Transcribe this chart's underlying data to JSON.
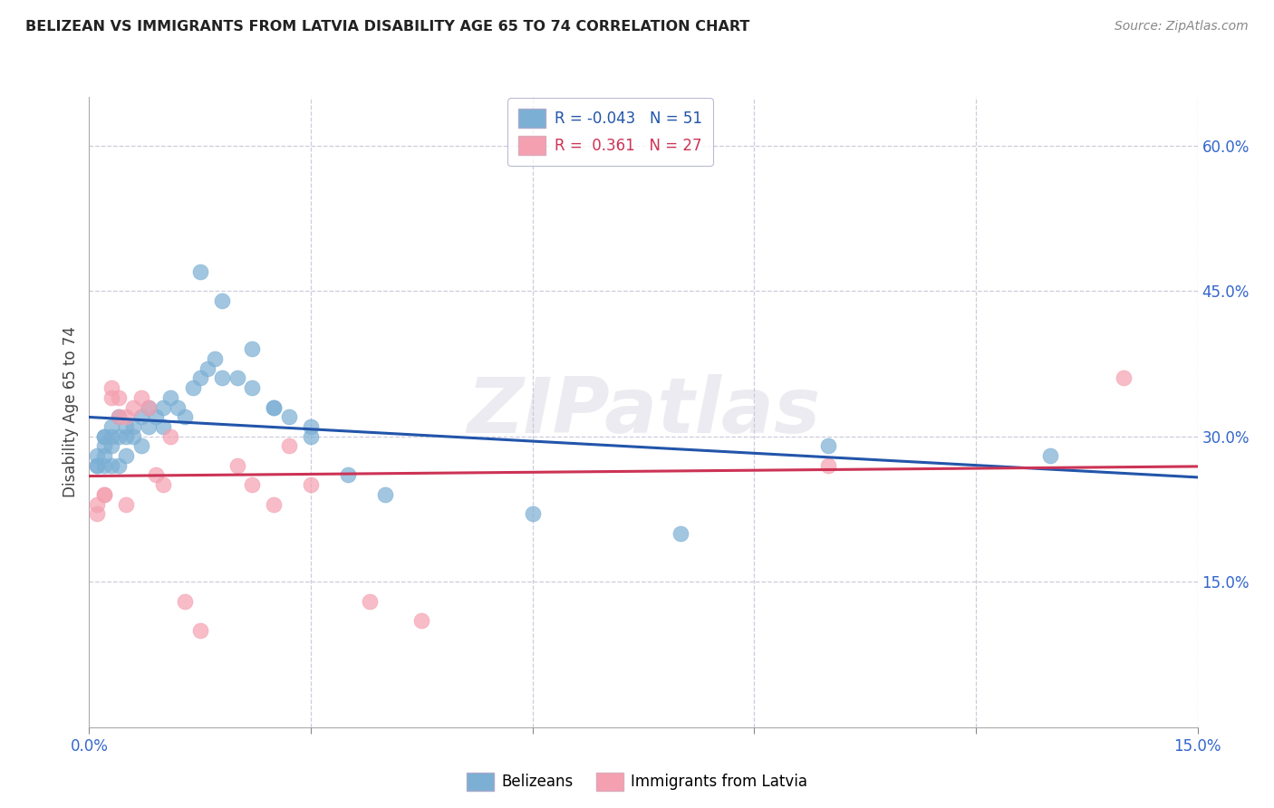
{
  "title": "BELIZEAN VS IMMIGRANTS FROM LATVIA DISABILITY AGE 65 TO 74 CORRELATION CHART",
  "source": "Source: ZipAtlas.com",
  "ylabel": "Disability Age 65 to 74",
  "xlim": [
    0.0,
    0.15
  ],
  "ylim": [
    0.0,
    0.65
  ],
  "xticks": [
    0.0,
    0.03,
    0.06,
    0.09,
    0.12,
    0.15
  ],
  "xticklabels": [
    "0.0%",
    "",
    "",
    "",
    "",
    "15.0%"
  ],
  "yticks_right": [
    0.15,
    0.3,
    0.45,
    0.6
  ],
  "ytick_labels_right": [
    "15.0%",
    "30.0%",
    "45.0%",
    "60.0%"
  ],
  "belizean_color": "#7BAFD4",
  "latvia_color": "#F4A0B0",
  "belizean_line_color": "#2255AA",
  "latvia_line_color": "#CC3355",
  "belizean_r": -0.043,
  "belizean_n": 51,
  "latvia_r": 0.361,
  "latvia_n": 27,
  "legend_label_1": "Belizeans",
  "legend_label_2": "Immigrants from Latvia",
  "watermark": "ZIPatlas",
  "belizean_x": [
    0.001,
    0.001,
    0.001,
    0.002,
    0.002,
    0.002,
    0.002,
    0.002,
    0.003,
    0.003,
    0.003,
    0.003,
    0.004,
    0.004,
    0.004,
    0.005,
    0.005,
    0.005,
    0.006,
    0.006,
    0.007,
    0.007,
    0.008,
    0.008,
    0.009,
    0.01,
    0.01,
    0.011,
    0.012,
    0.013,
    0.014,
    0.015,
    0.016,
    0.017,
    0.018,
    0.02,
    0.022,
    0.025,
    0.027,
    0.03,
    0.015,
    0.018,
    0.022,
    0.025,
    0.03,
    0.035,
    0.04,
    0.06,
    0.08,
    0.1,
    0.13
  ],
  "belizean_y": [
    0.27,
    0.27,
    0.28,
    0.29,
    0.3,
    0.27,
    0.28,
    0.3,
    0.29,
    0.3,
    0.31,
    0.27,
    0.3,
    0.32,
    0.27,
    0.3,
    0.31,
    0.28,
    0.31,
    0.3,
    0.32,
    0.29,
    0.31,
    0.33,
    0.32,
    0.33,
    0.31,
    0.34,
    0.33,
    0.32,
    0.35,
    0.36,
    0.37,
    0.38,
    0.36,
    0.36,
    0.35,
    0.33,
    0.32,
    0.3,
    0.47,
    0.44,
    0.39,
    0.33,
    0.31,
    0.26,
    0.24,
    0.22,
    0.2,
    0.29,
    0.28
  ],
  "latvia_x": [
    0.001,
    0.001,
    0.002,
    0.002,
    0.003,
    0.003,
    0.004,
    0.004,
    0.005,
    0.005,
    0.006,
    0.007,
    0.008,
    0.009,
    0.01,
    0.011,
    0.013,
    0.015,
    0.02,
    0.022,
    0.025,
    0.027,
    0.03,
    0.038,
    0.045,
    0.1,
    0.14
  ],
  "latvia_y": [
    0.23,
    0.22,
    0.24,
    0.24,
    0.34,
    0.35,
    0.32,
    0.34,
    0.23,
    0.32,
    0.33,
    0.34,
    0.33,
    0.26,
    0.25,
    0.3,
    0.13,
    0.1,
    0.27,
    0.25,
    0.23,
    0.29,
    0.25,
    0.13,
    0.11,
    0.27,
    0.36
  ]
}
